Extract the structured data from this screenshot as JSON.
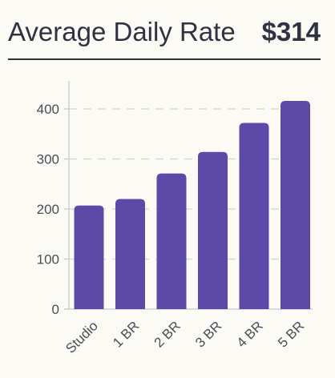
{
  "header": {
    "title": "Average Daily Rate",
    "value": "$314"
  },
  "colors": {
    "background": "#fbfaf5",
    "text": "#2f3241",
    "bar": "#5c4aa8",
    "grid": "#d9d9d9",
    "axis": "#cfcfcf"
  },
  "chart_data": {
    "type": "bar",
    "categories": [
      "Studio",
      "1 BR",
      "2 BR",
      "3 BR",
      "4 BR",
      "5 BR"
    ],
    "values": [
      207,
      220,
      271,
      314,
      372,
      416
    ],
    "ylim": [
      0,
      440
    ],
    "yticks": [
      0,
      100,
      200,
      300,
      400
    ],
    "grid": "horizontal-dashed",
    "xlabel": "",
    "ylabel": ""
  }
}
